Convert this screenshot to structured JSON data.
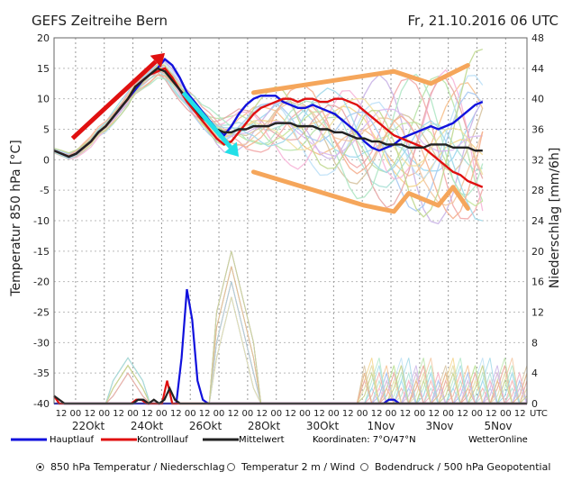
{
  "title": "GEFS Zeitreihe Bern",
  "datetime": "Fr, 21.10.2016 06 UTC",
  "legend": {
    "main": "Hauptlauf",
    "control": "Kontrolllauf",
    "mean": "Mittelwert",
    "coords": "Koordinaten: 7°O/47°N",
    "brand": "WetterOnline"
  },
  "radios": [
    {
      "label": "850 hPa Temperatur / Niederschlag",
      "selected": true
    },
    {
      "label": "Temperatur 2 m / Wind",
      "selected": false
    },
    {
      "label": "Bodendruck / 500 hPa Geopotential",
      "selected": false
    }
  ],
  "colors": {
    "main": "#1111dd",
    "control": "#e01010",
    "mean": "#222222",
    "arrow_up": "#e01010",
    "arrow_down": "#22e0e8",
    "envelope": "#f5a65b",
    "grid": "#888888"
  },
  "chart_data": {
    "type": "line",
    "ylabel": "Temperatur 850 hPa [°C]",
    "y2label": "Niederschlag [mm/6h]",
    "ylim": [
      -40,
      20
    ],
    "y2lim": [
      0,
      48
    ],
    "yticks": [
      20,
      15,
      10,
      5,
      0,
      -5,
      -10,
      -15,
      -20,
      -25,
      -30,
      -35,
      -40
    ],
    "y2ticks": [
      48,
      44,
      40,
      36,
      32,
      28,
      24,
      20,
      16,
      12,
      8,
      4,
      0
    ],
    "xlim": [
      0,
      64
    ],
    "hour_labels": [
      "12",
      "00",
      "12",
      "00",
      "12",
      "00",
      "12",
      "00",
      "12",
      "00",
      "12",
      "00",
      "12",
      "00",
      "12",
      "00",
      "12",
      "00",
      "12",
      "00",
      "12",
      "00",
      "12",
      "00",
      "12",
      "00",
      "12",
      "00",
      "12",
      "00",
      "12",
      "00",
      "12"
    ],
    "day_labels": [
      "22Okt",
      "24Okt",
      "26Okt",
      "28Okt",
      "30Okt",
      "1Nov",
      "3Nov",
      "5Nov"
    ],
    "x_unit": "UTC",
    "temperature_series": [
      {
        "name": "Hauptlauf",
        "values": [
          1.5,
          1,
          0.5,
          1,
          2,
          3,
          4.5,
          5.5,
          7,
          8.5,
          10,
          11.5,
          13,
          14,
          15,
          16.5,
          15.5,
          13.5,
          11,
          9.5,
          8,
          6.5,
          5,
          4,
          5.5,
          7.5,
          9,
          10,
          10.5,
          10.5,
          10.5,
          9.5,
          9,
          8.5,
          8.5,
          9,
          8.5,
          8,
          7.5,
          6.5,
          5.5,
          4.5,
          3,
          2,
          1.5,
          2,
          2.5,
          3.5,
          4,
          4.5,
          5,
          5.5,
          5,
          5.5,
          6,
          7,
          8,
          9,
          9.5
        ]
      },
      {
        "name": "Kontrolllauf",
        "values": [
          1.5,
          1,
          0.5,
          1,
          2,
          3,
          4.5,
          5.5,
          7,
          8.5,
          10,
          12,
          13,
          14,
          14.5,
          15,
          13.5,
          11.5,
          9.5,
          8,
          6.5,
          5,
          3.5,
          2.5,
          3,
          4.5,
          6,
          7.5,
          8.5,
          9,
          9.5,
          10,
          10,
          9.5,
          10,
          10,
          9.5,
          9.5,
          10,
          10,
          9.5,
          9,
          8,
          7,
          6,
          5,
          4,
          3.5,
          3,
          2.5,
          2,
          1,
          0,
          -1,
          -2,
          -2.5,
          -3.5,
          -4,
          -4.5
        ]
      },
      {
        "name": "Mittelwert",
        "values": [
          1.5,
          1,
          0.5,
          1,
          2,
          3,
          4.5,
          5.5,
          7,
          8.5,
          10,
          12,
          13,
          14,
          15,
          14.5,
          13,
          11.5,
          10,
          8.5,
          7,
          6,
          5,
          4.5,
          4.5,
          5,
          5,
          5.5,
          5.5,
          5.5,
          6,
          6,
          6,
          5.5,
          5.5,
          5.5,
          5,
          5,
          4.5,
          4.5,
          4,
          3.5,
          3.5,
          3,
          3,
          2.5,
          2.5,
          2.5,
          2,
          2,
          2,
          2.5,
          2.5,
          2.5,
          2,
          2,
          2,
          1.5,
          1.5
        ]
      }
    ],
    "precipitation_series": [
      {
        "name": "Hauptlauf",
        "values": [
          0,
          0,
          0,
          0,
          0,
          0,
          0,
          0,
          0,
          0,
          0,
          0,
          0,
          0,
          0,
          0,
          0,
          0,
          0,
          0,
          0,
          0,
          0,
          0,
          6,
          15,
          11,
          3,
          0.5,
          0,
          0,
          0,
          0,
          0,
          0,
          0,
          0,
          0,
          0,
          0,
          0,
          0,
          0,
          0,
          0,
          0,
          0,
          0,
          0,
          0,
          0,
          0,
          0,
          0,
          0,
          0,
          0,
          0,
          0,
          0,
          0,
          0,
          0,
          0.5,
          0.5,
          0,
          0,
          0,
          0,
          0,
          0,
          0,
          0,
          0,
          0,
          0,
          0,
          0,
          0,
          0,
          0,
          0,
          0,
          0,
          0,
          0,
          0,
          0,
          0,
          0
        ]
      },
      {
        "name": "Kontrolllauf",
        "values": [
          1,
          0,
          0,
          0,
          0,
          0,
          0,
          0,
          0,
          0,
          0,
          0,
          0,
          0,
          0,
          0,
          0.5,
          0.5,
          0,
          0,
          0,
          0,
          3,
          0,
          0,
          0,
          0,
          0,
          0,
          0,
          0,
          0,
          0,
          0,
          0,
          0,
          0,
          0,
          0,
          0,
          0,
          0,
          0,
          0,
          0,
          0,
          0,
          0,
          0,
          0,
          0,
          0,
          0,
          0,
          0,
          0,
          0,
          0,
          0,
          0,
          0,
          0,
          0,
          0,
          0,
          0,
          0,
          0,
          0,
          0,
          0,
          0,
          0,
          0,
          0,
          0,
          0,
          0,
          0,
          0,
          0,
          0,
          0,
          0,
          0,
          0,
          0,
          0,
          0,
          0,
          0,
          0,
          0
        ]
      },
      {
        "name": "Mittelwert",
        "values": [
          1,
          0.5,
          0,
          0,
          0,
          0,
          0,
          0,
          0,
          0,
          0,
          0,
          0,
          0,
          0,
          0,
          0.5,
          0.5,
          0,
          0.5,
          0,
          0.5,
          2,
          0.5,
          0,
          0,
          0,
          0,
          0,
          0,
          0,
          0,
          0,
          0,
          0,
          0,
          0,
          0,
          0,
          0,
          0,
          0,
          0,
          0,
          0,
          0,
          0,
          0,
          0,
          0,
          0,
          0,
          0,
          0,
          0,
          0,
          0,
          0,
          0,
          0,
          0,
          0,
          0,
          0,
          0,
          0,
          0,
          0,
          0,
          0,
          0,
          0,
          0,
          0,
          0,
          0,
          0,
          0,
          0,
          0,
          0,
          0,
          0,
          0,
          0,
          0,
          0,
          0,
          0,
          0,
          0
        ]
      }
    ],
    "annotations": [
      {
        "type": "arrow",
        "label": "rising trend",
        "from": [
          2.5,
          3.5
        ],
        "to": [
          15,
          17.5
        ]
      },
      {
        "type": "arrow",
        "label": "falling trend",
        "from": [
          17.5,
          11
        ],
        "to": [
          25,
          0.5
        ]
      },
      {
        "type": "envelope",
        "label": "upper spread",
        "points": [
          [
            27,
            11
          ],
          [
            46,
            14.5
          ],
          [
            51,
            12.5
          ],
          [
            56,
            15.5
          ]
        ]
      },
      {
        "type": "envelope",
        "label": "lower spread",
        "points": [
          [
            27,
            -2
          ],
          [
            42,
            -7.5
          ],
          [
            46,
            -8.5
          ],
          [
            48,
            -5.5
          ],
          [
            52,
            -7.5
          ],
          [
            54,
            -4.5
          ],
          [
            56,
            -8
          ]
        ]
      }
    ]
  }
}
